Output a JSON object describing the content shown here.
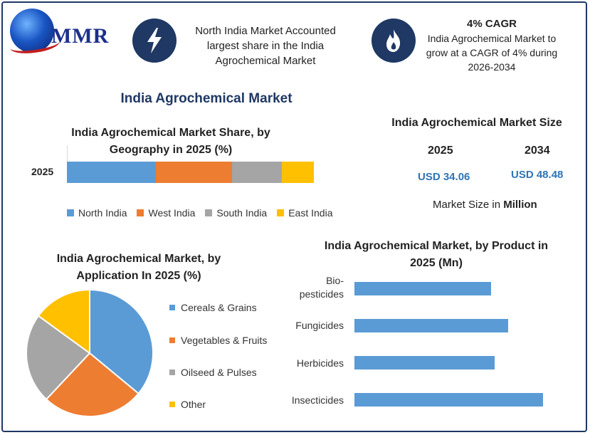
{
  "header": {
    "logo_text": "MMR",
    "info1": "North India Market Accounted largest share in the India Agrochemical Market",
    "cagr_title": "4% CAGR",
    "cagr_text": "India Agrochemical Market to grow at a CAGR of 4% during 2026-2034",
    "icon1": "lightning-bolt-icon",
    "icon2": "flame-icon"
  },
  "main_title": "India Agrochemical Market",
  "market_size": {
    "title": "India Agrochemical Market Size",
    "year1": "2025",
    "year2": "2034",
    "value1": "USD 34.06",
    "value2": "USD 48.48",
    "note_prefix": "Market Size in ",
    "note_bold": "Million"
  },
  "colors": {
    "blue": "#5b9bd5",
    "orange": "#ed7d31",
    "gray": "#a5a5a5",
    "yellow": "#ffc000",
    "navy": "#1f3864"
  },
  "chart_data": [
    {
      "type": "bar",
      "orientation": "horizontal-stacked",
      "title": "India Agrochemical Market Share, by Geography in 2025 (%)",
      "categories": [
        "2025"
      ],
      "series": [
        {
          "name": "North India",
          "values": [
            36
          ]
        },
        {
          "name": "West India",
          "values": [
            31
          ]
        },
        {
          "name": "South India",
          "values": [
            20
          ]
        },
        {
          "name": "East India",
          "values": [
            13
          ]
        }
      ],
      "legend": "bottom"
    },
    {
      "type": "pie",
      "title": "India Agrochemical Market, by Application In 2025 (%)",
      "labels": [
        "Cereals & Grains",
        "Vegetables & Fruits",
        "Oilseed & Pulses",
        "Other"
      ],
      "values": [
        36,
        26,
        23,
        15
      ],
      "legend": "right"
    },
    {
      "type": "bar",
      "orientation": "horizontal",
      "title": "India Agrochemical Market, by Product in 2025 (Mn)",
      "categories": [
        "Bio-pesticides",
        "Fungicides",
        "Herbicides",
        "Insecticides"
      ],
      "category_lines": [
        [
          "Bio-",
          "pesticides"
        ],
        [
          "Fungicides"
        ],
        [
          "Herbicides"
        ],
        [
          "Insecticides"
        ]
      ],
      "values": [
        7.1,
        8.0,
        7.3,
        9.8
      ]
    }
  ]
}
